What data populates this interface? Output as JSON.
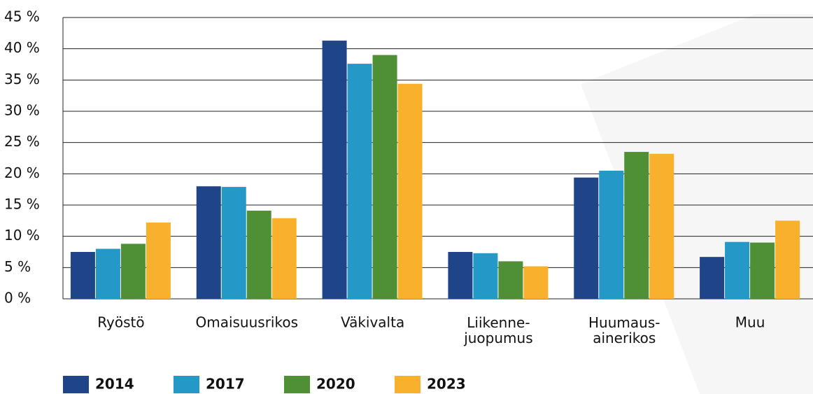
{
  "chart_data": {
    "type": "bar",
    "categories": [
      "Ryöstö",
      "Omaisuusrikos",
      "Väkivalta",
      "Liikenne-\njuopumus",
      "Huumaus-\nainerikos",
      "Muu"
    ],
    "series": [
      {
        "name": "2014",
        "color": "#1f4488",
        "values": [
          7.5,
          18.0,
          41.3,
          7.5,
          19.4,
          6.7
        ]
      },
      {
        "name": "2017",
        "color": "#2499c8",
        "values": [
          8.0,
          17.9,
          37.6,
          7.3,
          20.5,
          9.1
        ]
      },
      {
        "name": "2020",
        "color": "#4f8f36",
        "values": [
          8.8,
          14.1,
          39.0,
          6.0,
          23.5,
          9.0
        ]
      },
      {
        "name": "2023",
        "color": "#f8b02d",
        "values": [
          12.2,
          12.9,
          34.4,
          5.2,
          23.2,
          12.5
        ]
      }
    ],
    "ylim": [
      0,
      45
    ],
    "yticks": [
      {
        "value": 0,
        "label": "0 %"
      },
      {
        "value": 5,
        "label": "5 %"
      },
      {
        "value": 10,
        "label": "10 %"
      },
      {
        "value": 15,
        "label": "15 %"
      },
      {
        "value": 20,
        "label": "20 %"
      },
      {
        "value": 25,
        "label": "25 %"
      },
      {
        "value": 30,
        "label": "30 %"
      },
      {
        "value": 35,
        "label": "35 %"
      },
      {
        "value": 40,
        "label": "40 %"
      },
      {
        "value": 45,
        "label": "45 %"
      }
    ],
    "grid": true,
    "legend": "bottom"
  }
}
